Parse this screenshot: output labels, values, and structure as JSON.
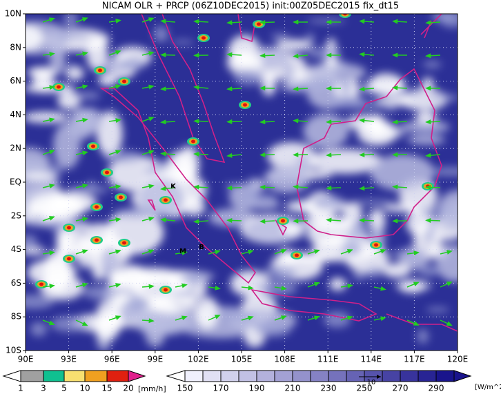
{
  "title": "NICAM OLR + PRCP (06Z10DEC2015) init:00Z05DEC2015 fix_dt15",
  "lat_labels": [
    "10N",
    "8N",
    "6N",
    "4N",
    "2N",
    "EQ",
    "2S",
    "4S",
    "6S",
    "8S",
    "10S"
  ],
  "lon_labels": [
    "90E",
    "93E",
    "96E",
    "99E",
    "102E",
    "105E",
    "108E",
    "111E",
    "114E",
    "117E",
    "120E"
  ],
  "places": [
    "K",
    "M",
    "B"
  ],
  "vector_reference": "10",
  "precip_legend": {
    "labels": [
      1,
      3,
      5,
      10,
      15,
      20
    ],
    "unit": "[mm/h]"
  },
  "olr_legend": {
    "labels": [
      150,
      170,
      190,
      210,
      230,
      250,
      270,
      290
    ],
    "unit": "[W/m^2]"
  }
}
